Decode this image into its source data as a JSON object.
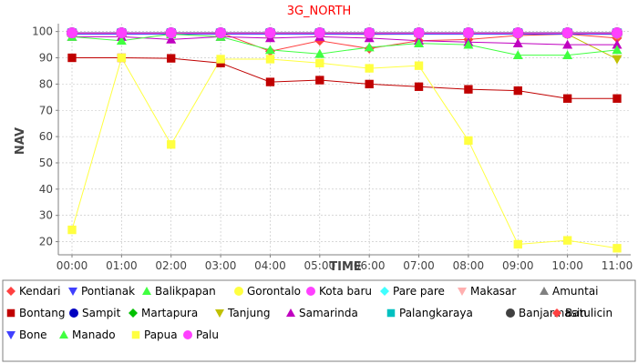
{
  "chart_data": {
    "type": "line",
    "title": "3G_NORTH",
    "title_color": "#ff0000",
    "xlabel": "TIME",
    "ylabel": "NAV",
    "categories": [
      "00:00",
      "01:00",
      "02:00",
      "03:00",
      "04:00",
      "05:00",
      "06:00",
      "07:00",
      "08:00",
      "09:00",
      "10:00",
      "11:00"
    ],
    "ylim": [
      15,
      103
    ],
    "yticks": [
      20,
      30,
      40,
      50,
      60,
      70,
      80,
      90,
      100
    ],
    "grid": true,
    "legend_position": "bottom",
    "series": [
      {
        "name": "Kendari",
        "color": "#ff4040",
        "marker": "diamond",
        "values": [
          99.5,
          99.5,
          99.3,
          99.5,
          92.5,
          96.5,
          93.5,
          96.5,
          97.0,
          98.5,
          99.0,
          97.5
        ]
      },
      {
        "name": "Pontianak",
        "color": "#4040ff",
        "marker": "triangle-down",
        "values": [
          99.5,
          99.5,
          99.5,
          99.5,
          99.5,
          99.5,
          99.5,
          99.5,
          99.5,
          99.5,
          99.5,
          99.5
        ]
      },
      {
        "name": "Balikpapan",
        "color": "#40ff40",
        "marker": "triangle-up",
        "values": [
          99.5,
          99.5,
          99.6,
          99.6,
          99.6,
          99.6,
          99.6,
          99.6,
          99.6,
          99.6,
          99.6,
          99.6
        ]
      },
      {
        "name": "Gorontalo",
        "color": "#ffff40",
        "marker": "circle",
        "values": [
          99.3,
          99.3,
          99.3,
          99.3,
          99.3,
          99.3,
          99.3,
          99.3,
          99.3,
          99.3,
          99.3,
          99.3
        ]
      },
      {
        "name": "Kota baru",
        "color": "#ff40ff",
        "marker": "circle",
        "values": [
          99.5,
          99.5,
          99.5,
          99.5,
          99.5,
          99.5,
          99.5,
          99.5,
          99.5,
          99.5,
          99.5,
          99.5
        ]
      },
      {
        "name": "Pare pare",
        "color": "#40ffff",
        "marker": "diamond",
        "values": [
          99.6,
          99.6,
          99.6,
          99.6,
          99.6,
          99.6,
          99.6,
          99.6,
          99.6,
          99.6,
          99.6,
          99.6
        ]
      },
      {
        "name": "Makasar",
        "color": "#ffafaf",
        "marker": "triangle-down",
        "values": [
          99.2,
          99.2,
          99.0,
          99.2,
          99.2,
          99.0,
          98.8,
          99.0,
          99.0,
          99.2,
          99.0,
          98.8
        ]
      },
      {
        "name": "Amuntai",
        "color": "#808080",
        "marker": "triangle-up",
        "values": [
          99.6,
          99.6,
          99.6,
          99.6,
          99.6,
          99.6,
          99.6,
          99.6,
          99.6,
          99.6,
          99.6,
          99.6
        ]
      },
      {
        "name": "Bontang",
        "color": "#c00000",
        "marker": "square",
        "values": [
          90.0,
          90.0,
          89.8,
          88.0,
          80.8,
          81.5,
          80.0,
          79.0,
          78.0,
          77.5,
          74.5,
          74.5
        ]
      },
      {
        "name": "Sampit",
        "color": "#0000c0",
        "marker": "circle",
        "values": [
          99.5,
          99.5,
          99.5,
          99.5,
          99.5,
          99.5,
          99.5,
          99.5,
          99.5,
          99.5,
          99.5,
          99.5
        ]
      },
      {
        "name": "Martapura",
        "color": "#00c000",
        "marker": "diamond",
        "values": [
          99.5,
          99.5,
          99.5,
          99.5,
          99.5,
          99.5,
          99.5,
          99.5,
          99.5,
          99.5,
          99.5,
          99.5
        ]
      },
      {
        "name": "Tanjung",
        "color": "#c0c000",
        "marker": "triangle-down",
        "values": [
          99.0,
          99.0,
          99.0,
          99.0,
          99.0,
          99.0,
          99.0,
          99.0,
          99.0,
          99.0,
          99.0,
          89.5
        ]
      },
      {
        "name": "Samarinda",
        "color": "#c000c0",
        "marker": "triangle-up",
        "values": [
          98.0,
          98.0,
          97.0,
          98.0,
          97.5,
          98.0,
          97.5,
          96.5,
          96.0,
          95.5,
          95.0,
          95.0
        ]
      },
      {
        "name": "Palangkaraya",
        "color": "#00c0c0",
        "marker": "square",
        "values": [
          99.6,
          99.6,
          99.6,
          99.6,
          99.6,
          99.6,
          99.6,
          99.6,
          99.6,
          99.6,
          99.6,
          99.6
        ]
      },
      {
        "name": "Banjarmasin",
        "color": "#404040",
        "marker": "circle",
        "values": [
          99.5,
          99.5,
          99.5,
          99.5,
          99.5,
          99.5,
          99.5,
          99.5,
          99.5,
          99.5,
          99.5,
          99.5
        ]
      },
      {
        "name": "Batulicin",
        "color": "#ff4040",
        "marker": "diamond",
        "values": [
          99.3,
          99.3,
          99.3,
          99.3,
          99.3,
          99.3,
          99.3,
          99.3,
          99.3,
          99.3,
          99.3,
          99.3
        ]
      },
      {
        "name": "Bone",
        "color": "#4040ff",
        "marker": "triangle-down",
        "values": [
          99.0,
          99.0,
          99.0,
          99.0,
          99.0,
          99.0,
          99.0,
          99.0,
          99.0,
          99.0,
          99.0,
          99.0
        ]
      },
      {
        "name": "Manado",
        "color": "#40ff40",
        "marker": "triangle-up",
        "values": [
          98.0,
          96.5,
          99.0,
          98.0,
          93.0,
          91.5,
          94.0,
          95.5,
          95.0,
          91.0,
          91.0,
          93.0
        ]
      },
      {
        "name": "Papua",
        "color": "#ffff40",
        "marker": "square",
        "values": [
          24.5,
          90.0,
          57.0,
          89.5,
          89.5,
          88.0,
          86.0,
          87.0,
          58.5,
          19.0,
          20.5,
          17.5
        ]
      },
      {
        "name": "Palu",
        "color": "#ff40ff",
        "marker": "circle",
        "values": [
          99.5,
          99.5,
          99.5,
          99.5,
          99.5,
          99.5,
          99.5,
          99.5,
          99.5,
          99.5,
          99.5,
          99.5
        ]
      }
    ]
  }
}
